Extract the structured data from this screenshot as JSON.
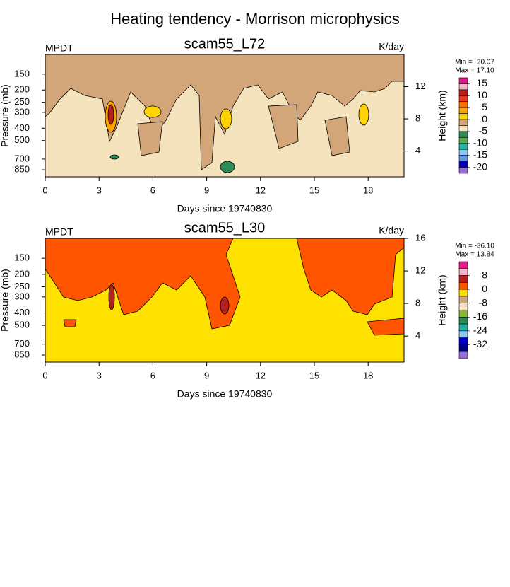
{
  "title": "Heating tendency - Morrison microphysics",
  "chart_data": [
    {
      "type": "contour",
      "title": "scam55_L72",
      "left_label": "MPDT",
      "right_label": "K/day",
      "xlabel": "Days since 19740830",
      "ylabel": "Pressure (mb)",
      "y2label": "Height (km)",
      "xlim": [
        0,
        20
      ],
      "xticks": [
        0,
        3,
        6,
        9,
        12,
        15,
        18
      ],
      "ylim": [
        105,
        965
      ],
      "ylog": true,
      "yticks": [
        150,
        200,
        250,
        300,
        400,
        500,
        700,
        850
      ],
      "y2lim": [
        0.8,
        16
      ],
      "y2ticks": [
        4,
        8,
        12
      ],
      "min_label": "Min = -20.07",
      "max_label": "Max =  17.10",
      "cblim": [
        -22.5,
        17.5
      ],
      "cbticks": [
        15,
        10,
        5,
        0,
        -5,
        -10,
        -15,
        -20
      ],
      "colors": [
        "#e8198e",
        "#f8b4c6",
        "#b3201e",
        "#e33b1c",
        "#ff6b00",
        "#ffa500",
        "#ffd400",
        "#d2a679",
        "#f5e3bd",
        "#2e8b57",
        "#55b04a",
        "#20b2aa",
        "#8cc8ee",
        "#6495ed",
        "#0000c8",
        "#9370db"
      ]
    },
    {
      "type": "contour",
      "title": "scam55_L30",
      "left_label": "MPDT",
      "right_label": "K/day",
      "xlabel": "Days since 19740830",
      "ylabel": "Pressure (mb)",
      "y2label": "Height (km)",
      "xlim": [
        0,
        20
      ],
      "xticks": [
        0,
        3,
        6,
        9,
        12,
        15,
        18
      ],
      "ylim": [
        105,
        965
      ],
      "ylog": true,
      "yticks": [
        150,
        200,
        250,
        300,
        400,
        500,
        700,
        850
      ],
      "y2lim": [
        0.8,
        16
      ],
      "y2ticks": [
        4,
        8,
        12,
        16
      ],
      "min_label": "Min = -36.10",
      "max_label": "Max =  13.84",
      "cblim": [
        -40,
        16
      ],
      "cbticks": [
        8,
        0,
        -8,
        -16,
        -24,
        -32
      ],
      "colors": [
        "#e8198e",
        "#f8b4c6",
        "#b3201e",
        "#ff5500",
        "#ffe100",
        "#d2a679",
        "#f5e3bd",
        "#8ab833",
        "#2e8b57",
        "#20b2aa",
        "#8cc8ee",
        "#0000c8",
        "#00007a",
        "#9370db"
      ]
    }
  ]
}
